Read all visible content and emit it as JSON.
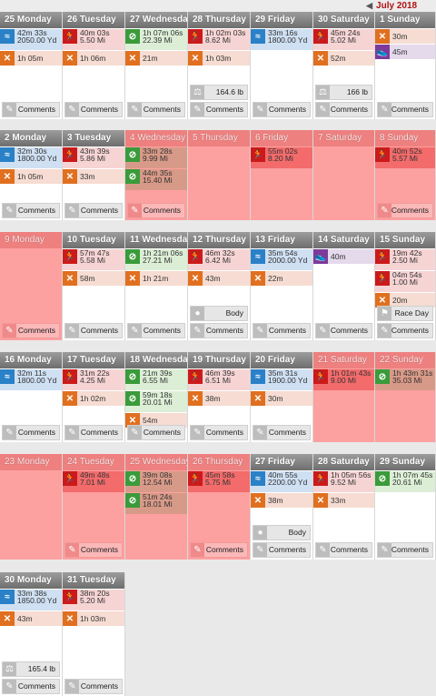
{
  "month_nav": {
    "prev_icon": "chevron-left-icon",
    "next_icon": "chevron-right-icon",
    "label": "July 2018"
  },
  "colors": {
    "swim": "#2a81c7",
    "run": "#cc1a1a",
    "strength": "#e07020",
    "bike": "#3a9b3a",
    "other": "#7d3a9a",
    "rest_day": "#fda0a0"
  },
  "weeks": [
    {
      "days": [
        {
          "label": "25 Monday",
          "workouts": [
            {
              "type": "swim",
              "icon": "swim-icon",
              "line1": "42m 33s",
              "line2": "2050.00 Yd"
            },
            {
              "type": "strength",
              "icon": "strength-icon",
              "line1": "1h 05m"
            }
          ],
          "comments_label": "Comments"
        },
        {
          "label": "26 Tuesday",
          "workouts": [
            {
              "type": "run",
              "icon": "run-icon",
              "line1": "40m 03s",
              "line2": "5.50 Mi"
            },
            {
              "type": "strength",
              "icon": "strength-icon",
              "line1": "1h 06m"
            }
          ],
          "comments_label": "Comments"
        },
        {
          "label": "27 Wednesday",
          "workouts": [
            {
              "type": "bike",
              "icon": "bike-icon",
              "line1": "1h 07m 06s",
              "line2": "22.39 Mi"
            },
            {
              "type": "strength",
              "icon": "strength-icon",
              "line1": "21m"
            }
          ],
          "comments_label": "Comments"
        },
        {
          "label": "28 Thursday",
          "workouts": [
            {
              "type": "run",
              "icon": "run-icon",
              "line1": "1h 02m 03s",
              "line2": "8.62 Mi"
            },
            {
              "type": "strength",
              "icon": "strength-icon",
              "line1": "1h 03m"
            }
          ],
          "comments_label": "Comments",
          "metric": {
            "icon": "weight-icon",
            "value": "164.6 lb"
          }
        },
        {
          "label": "29 Friday",
          "workouts": [
            {
              "type": "swim",
              "icon": "swim-icon",
              "line1": "33m 16s",
              "line2": "1800.00 Yd"
            }
          ],
          "comments_label": "Comments"
        },
        {
          "label": "30 Saturday",
          "workouts": [
            {
              "type": "run",
              "icon": "run-icon",
              "line1": "45m 24s",
              "line2": "5.02 Mi"
            },
            {
              "type": "strength",
              "icon": "strength-icon",
              "line1": "52m"
            }
          ],
          "comments_label": "Comments",
          "metric": {
            "icon": "weight-icon",
            "value": "166 lb"
          }
        },
        {
          "label": "1 Sunday",
          "workouts": [
            {
              "type": "strength",
              "icon": "strength-icon",
              "line1": "30m"
            },
            {
              "type": "other",
              "icon": "shoe-icon",
              "line1": "45m"
            }
          ],
          "comments_label": "Comments"
        }
      ]
    },
    {
      "days": [
        {
          "label": "2 Monday",
          "workouts": [
            {
              "type": "swim",
              "icon": "swim-icon",
              "line1": "32m 30s",
              "line2": "1800.00 Yd"
            },
            {
              "type": "strength",
              "icon": "strength-icon",
              "line1": "1h 05m"
            }
          ],
          "comments_label": "Comments"
        },
        {
          "label": "3 Tuesday",
          "workouts": [
            {
              "type": "run",
              "icon": "run-icon",
              "line1": "43m 39s",
              "line2": "5.86 Mi"
            },
            {
              "type": "strength",
              "icon": "strength-icon",
              "line1": "33m"
            }
          ],
          "comments_label": "Comments"
        },
        {
          "label": "4 Wednesday",
          "red": true,
          "workouts": [
            {
              "type": "bike",
              "icon": "bike-icon",
              "line1": "33m 28s",
              "line2": "9.99 Mi"
            },
            {
              "type": "bike",
              "icon": "bike-icon",
              "line1": "44m 35s",
              "line2": "15.40 Mi"
            }
          ],
          "comments_label": "Comments"
        },
        {
          "label": "5 Thursday",
          "red": true,
          "workouts": []
        },
        {
          "label": "6 Friday",
          "red": true,
          "workouts": [
            {
              "type": "run",
              "icon": "run-icon",
              "line1": "55m 02s",
              "line2": "8.20 Mi"
            }
          ]
        },
        {
          "label": "7 Saturday",
          "red": true,
          "workouts": []
        },
        {
          "label": "8 Sunday",
          "red": true,
          "workouts": [
            {
              "type": "run",
              "icon": "run-icon",
              "line1": "40m 52s",
              "line2": "5.57 Mi"
            }
          ],
          "comments_label": "Comments"
        }
      ]
    },
    {
      "days": [
        {
          "label": "9 Monday",
          "red": true,
          "workouts": [],
          "comments_label": "Comments"
        },
        {
          "label": "10 Tuesday",
          "workouts": [
            {
              "type": "run",
              "icon": "run-icon",
              "line1": "57m 47s",
              "line2": "5.58 Mi"
            },
            {
              "type": "strength",
              "icon": "strength-icon",
              "line1": "58m"
            }
          ],
          "comments_label": "Comments"
        },
        {
          "label": "11 Wednesday",
          "workouts": [
            {
              "type": "bike",
              "icon": "bike-icon",
              "line1": "1h 21m 06s",
              "line2": "27.21 Mi"
            },
            {
              "type": "strength",
              "icon": "strength-icon",
              "line1": "1h 21m"
            }
          ],
          "comments_label": "Comments"
        },
        {
          "label": "12 Thursday",
          "workouts": [
            {
              "type": "run",
              "icon": "run-icon",
              "line1": "46m 32s",
              "line2": "6.42 Mi"
            },
            {
              "type": "strength",
              "icon": "strength-icon",
              "line1": "43m"
            }
          ],
          "comments_label": "Comments",
          "metric": {
            "icon": "body-icon",
            "value": "Body"
          }
        },
        {
          "label": "13 Friday",
          "workouts": [
            {
              "type": "swim",
              "icon": "swim-icon",
              "line1": "35m 54s",
              "line2": "2000.00 Yd"
            },
            {
              "type": "strength",
              "icon": "strength-icon",
              "line1": "22m"
            }
          ],
          "comments_label": "Comments"
        },
        {
          "label": "14 Saturday",
          "workouts": [
            {
              "type": "other",
              "icon": "shoe-icon",
              "line1": "40m"
            }
          ],
          "comments_label": "Comments"
        },
        {
          "label": "15 Sunday",
          "workouts": [
            {
              "type": "run",
              "icon": "run-icon",
              "line1": "19m 42s",
              "line2": "2.50 Mi"
            },
            {
              "type": "run",
              "icon": "run-icon",
              "line1": "04m 54s",
              "line2": "1.00 Mi"
            },
            {
              "type": "strength",
              "icon": "strength-icon",
              "line1": "20m"
            }
          ],
          "comments_label": "Comments",
          "metric": {
            "icon": "flag-icon",
            "value": "Race Day"
          }
        }
      ]
    },
    {
      "days": [
        {
          "label": "16 Monday",
          "workouts": [
            {
              "type": "swim",
              "icon": "swim-icon",
              "line1": "32m 11s",
              "line2": "1800.00 Yd"
            }
          ],
          "comments_label": "Comments"
        },
        {
          "label": "17 Tuesday",
          "workouts": [
            {
              "type": "run",
              "icon": "run-icon",
              "line1": "31m 22s",
              "line2": "4.25 Mi"
            },
            {
              "type": "strength",
              "icon": "strength-icon",
              "line1": "1h 02m"
            }
          ],
          "comments_label": "Comments"
        },
        {
          "label": "18 Wednesday",
          "workouts": [
            {
              "type": "bike",
              "icon": "bike-icon",
              "line1": "21m 39s",
              "line2": "6.55 Mi"
            },
            {
              "type": "bike",
              "icon": "bike-icon",
              "line1": "59m 18s",
              "line2": "20.01 Mi"
            },
            {
              "type": "strength",
              "icon": "strength-icon",
              "line1": "54m"
            }
          ],
          "comments_label": "Comments"
        },
        {
          "label": "19 Thursday",
          "workouts": [
            {
              "type": "run",
              "icon": "run-icon",
              "line1": "46m 39s",
              "line2": "6.51 Mi"
            },
            {
              "type": "strength",
              "icon": "strength-icon",
              "line1": "38m"
            }
          ],
          "comments_label": "Comments"
        },
        {
          "label": "20 Friday",
          "workouts": [
            {
              "type": "swim",
              "icon": "swim-icon",
              "line1": "35m 31s",
              "line2": "1900.00 Yd"
            },
            {
              "type": "strength",
              "icon": "strength-icon",
              "line1": "30m"
            }
          ],
          "comments_label": "Comments"
        },
        {
          "label": "21 Saturday",
          "red": true,
          "workouts": [
            {
              "type": "run",
              "icon": "run-icon",
              "line1": "1h 01m 43s",
              "line2": "9.00 Mi"
            }
          ]
        },
        {
          "label": "22 Sunday",
          "red": true,
          "workouts": [
            {
              "type": "bike",
              "icon": "bike-icon",
              "line1": "1h 43m 31s",
              "line2": "35.03 Mi"
            }
          ]
        }
      ]
    },
    {
      "days": [
        {
          "label": "23 Monday",
          "red": true,
          "workouts": []
        },
        {
          "label": "24 Tuesday",
          "red": true,
          "workouts": [
            {
              "type": "run",
              "icon": "run-icon",
              "line1": "49m 48s",
              "line2": "7.01 Mi"
            }
          ],
          "comments_label": "Comments"
        },
        {
          "label": "25 Wednesday",
          "red": true,
          "workouts": [
            {
              "type": "bike",
              "icon": "bike-icon",
              "line1": "39m 08s",
              "line2": "12.54 Mi"
            },
            {
              "type": "bike",
              "icon": "bike-icon",
              "line1": "51m 24s",
              "line2": "18.01 Mi"
            }
          ]
        },
        {
          "label": "26 Thursday",
          "red": true,
          "workouts": [
            {
              "type": "run",
              "icon": "run-icon",
              "line1": "45m 58s",
              "line2": "5.75 Mi"
            }
          ],
          "comments_label": "Comments"
        },
        {
          "label": "27 Friday",
          "workouts": [
            {
              "type": "swim",
              "icon": "swim-icon",
              "line1": "40m 55s",
              "line2": "2200.00 Yd"
            },
            {
              "type": "strength",
              "icon": "strength-icon",
              "line1": "38m"
            }
          ],
          "comments_label": "Comments",
          "metric": {
            "icon": "body-icon",
            "value": "Body"
          }
        },
        {
          "label": "28 Saturday",
          "workouts": [
            {
              "type": "run",
              "icon": "run-icon",
              "line1": "1h 05m 56s",
              "line2": "9.52 Mi"
            },
            {
              "type": "strength",
              "icon": "strength-icon",
              "line1": "33m"
            }
          ],
          "comments_label": "Comments"
        },
        {
          "label": "29 Sunday",
          "workouts": [
            {
              "type": "bike",
              "icon": "bike-icon",
              "line1": "1h 07m 45s",
              "line2": "20.61 Mi"
            }
          ],
          "comments_label": "Comments"
        }
      ]
    },
    {
      "days": [
        {
          "label": "30 Monday",
          "workouts": [
            {
              "type": "swim",
              "icon": "swim-icon",
              "line1": "33m 38s",
              "line2": "1850.00 Yd"
            },
            {
              "type": "strength",
              "icon": "strength-icon",
              "line1": "43m"
            }
          ],
          "comments_label": "Comments",
          "metric": {
            "icon": "weight-icon",
            "value": "165.4 lb"
          }
        },
        {
          "label": "31 Tuesday",
          "workouts": [
            {
              "type": "run",
              "icon": "run-icon",
              "line1": "38m 20s",
              "line2": "5.20 Mi"
            },
            {
              "type": "strength",
              "icon": "strength-icon",
              "line1": "1h 03m"
            }
          ],
          "comments_label": "Comments"
        }
      ]
    }
  ]
}
